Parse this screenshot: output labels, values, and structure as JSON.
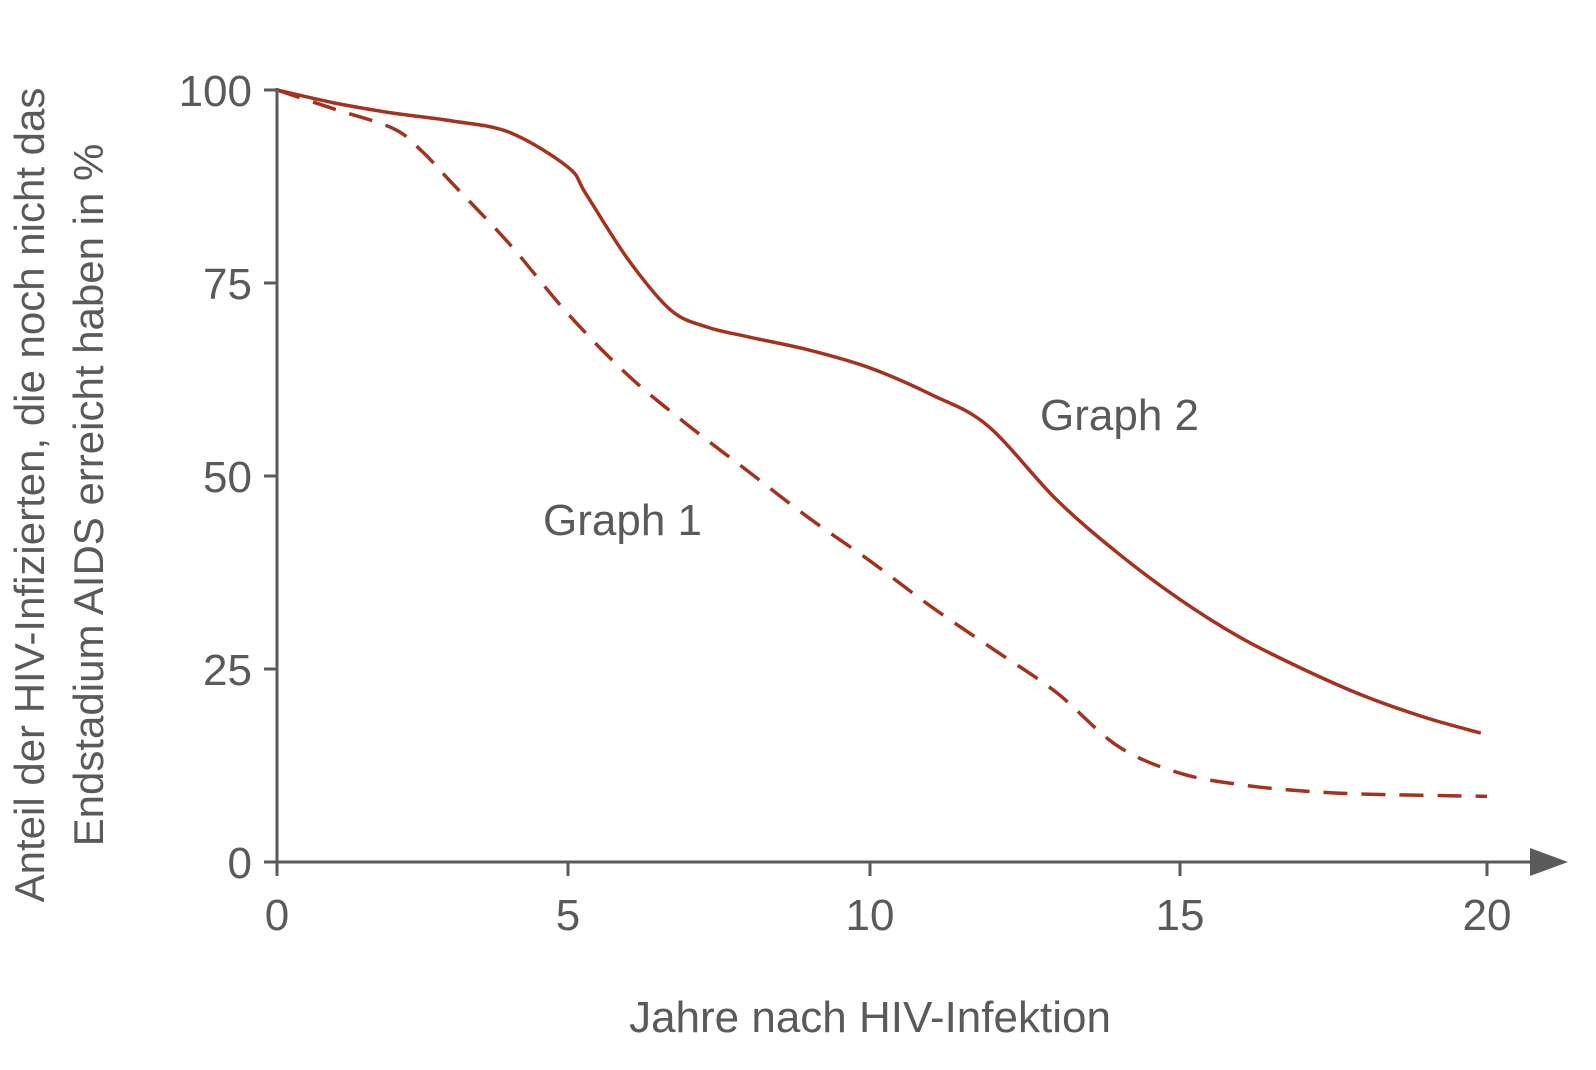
{
  "chart_data": {
    "type": "line",
    "xlabel": "Jahre nach HIV-Infektion",
    "ylabel_lines": [
      "Anteil der HIV-Infizierten, die noch nicht das",
      "Endstadium AIDS erreicht haben in %"
    ],
    "xlim": [
      0,
      20
    ],
    "ylim": [
      0,
      100
    ],
    "xticks": [
      0,
      5,
      10,
      15,
      20
    ],
    "yticks": [
      0,
      25,
      50,
      75,
      100
    ],
    "grid": false,
    "line_color": "#a3321f",
    "axis_color": "#5a5a5a",
    "series": [
      {
        "name": "Graph 1",
        "style": "dashed",
        "x": [
          0,
          1,
          2,
          2.5,
          3,
          4,
          5,
          6,
          7,
          8,
          9,
          10,
          11,
          12,
          13,
          14,
          15,
          16,
          17,
          18,
          20
        ],
        "y": [
          100,
          97.5,
          95,
          92,
          88,
          80,
          71,
          63,
          56.5,
          50.5,
          44.5,
          39,
          33,
          27.5,
          22,
          15,
          11.5,
          10,
          9.2,
          8.8,
          8.5
        ]
      },
      {
        "name": "Graph 2",
        "style": "solid",
        "x": [
          0,
          1,
          2,
          3,
          4,
          5,
          5.3,
          6,
          6.7,
          7.3,
          8,
          9,
          10,
          11,
          11.9,
          13,
          14,
          15,
          16,
          17,
          18,
          19,
          19.9
        ],
        "y": [
          100,
          98.3,
          97,
          96,
          94.5,
          90,
          86.5,
          78,
          71.5,
          69.3,
          68,
          66.3,
          64,
          60.5,
          56.5,
          47,
          40,
          34,
          29,
          25,
          21.5,
          18.7,
          16.7
        ]
      }
    ]
  }
}
